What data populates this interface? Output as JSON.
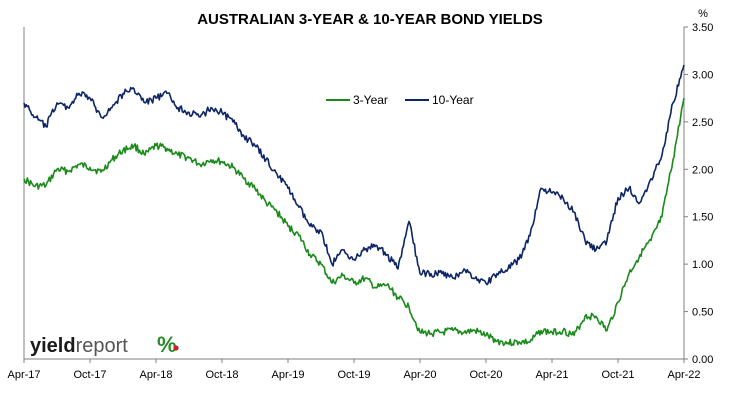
{
  "chart_data": {
    "type": "line",
    "title": "AUSTRALIAN 3-YEAR & 10-YEAR BOND YIELDS",
    "xlabel": "",
    "ylabel": "%",
    "x_tick_labels": [
      "Apr-17",
      "Oct-17",
      "Apr-18",
      "Oct-18",
      "Apr-19",
      "Oct-19",
      "Apr-20",
      "Oct-20",
      "Apr-21",
      "Oct-21",
      "Apr-22"
    ],
    "y_tick_labels": [
      "0.00",
      "0.50",
      "1.00",
      "1.50",
      "2.00",
      "2.50",
      "3.00",
      "3.50"
    ],
    "ylim": [
      0,
      3.5
    ],
    "xlim": [
      "2017-04",
      "2022-04"
    ],
    "grid": false,
    "legend_position": "top-center",
    "series": [
      {
        "name": "3-Year",
        "color": "#1a8a1a",
        "x": [
          "2017-04",
          "2017-05",
          "2017-06",
          "2017-07",
          "2017-08",
          "2017-09",
          "2017-10",
          "2017-11",
          "2017-12",
          "2018-01",
          "2018-02",
          "2018-03",
          "2018-04",
          "2018-05",
          "2018-06",
          "2018-07",
          "2018-08",
          "2018-09",
          "2018-10",
          "2018-11",
          "2018-12",
          "2019-01",
          "2019-02",
          "2019-03",
          "2019-04",
          "2019-05",
          "2019-06",
          "2019-07",
          "2019-08",
          "2019-09",
          "2019-10",
          "2019-11",
          "2019-12",
          "2020-01",
          "2020-02",
          "2020-03",
          "2020-04",
          "2020-05",
          "2020-06",
          "2020-07",
          "2020-08",
          "2020-09",
          "2020-10",
          "2020-11",
          "2020-12",
          "2021-01",
          "2021-02",
          "2021-03",
          "2021-04",
          "2021-05",
          "2021-06",
          "2021-07",
          "2021-08",
          "2021-09",
          "2021-10",
          "2021-11",
          "2021-12",
          "2022-01",
          "2022-02",
          "2022-03",
          "2022-04"
        ],
        "values": [
          1.9,
          1.82,
          1.83,
          2.0,
          1.98,
          2.05,
          2.02,
          1.97,
          2.1,
          2.2,
          2.25,
          2.15,
          2.25,
          2.22,
          2.15,
          2.12,
          2.05,
          2.1,
          2.08,
          2.02,
          1.9,
          1.8,
          1.65,
          1.55,
          1.4,
          1.3,
          1.1,
          1.0,
          0.8,
          0.88,
          0.8,
          0.85,
          0.75,
          0.78,
          0.65,
          0.55,
          0.28,
          0.27,
          0.28,
          0.3,
          0.28,
          0.3,
          0.25,
          0.19,
          0.17,
          0.18,
          0.18,
          0.3,
          0.28,
          0.3,
          0.25,
          0.45,
          0.45,
          0.3,
          0.6,
          0.9,
          1.1,
          1.25,
          1.5,
          2.1,
          2.75
        ]
      },
      {
        "name": "10-Year",
        "color": "#0d2566",
        "x": [
          "2017-04",
          "2017-05",
          "2017-06",
          "2017-07",
          "2017-08",
          "2017-09",
          "2017-10",
          "2017-11",
          "2017-12",
          "2018-01",
          "2018-02",
          "2018-03",
          "2018-04",
          "2018-05",
          "2018-06",
          "2018-07",
          "2018-08",
          "2018-09",
          "2018-10",
          "2018-11",
          "2018-12",
          "2019-01",
          "2019-02",
          "2019-03",
          "2019-04",
          "2019-05",
          "2019-06",
          "2019-07",
          "2019-08",
          "2019-09",
          "2019-10",
          "2019-11",
          "2019-12",
          "2020-01",
          "2020-02",
          "2020-03",
          "2020-04",
          "2020-05",
          "2020-06",
          "2020-07",
          "2020-08",
          "2020-09",
          "2020-10",
          "2020-11",
          "2020-12",
          "2021-01",
          "2021-02",
          "2021-03",
          "2021-04",
          "2021-05",
          "2021-06",
          "2021-07",
          "2021-08",
          "2021-09",
          "2021-10",
          "2021-11",
          "2021-12",
          "2022-01",
          "2022-02",
          "2022-03",
          "2022-04"
        ],
        "values": [
          2.7,
          2.55,
          2.45,
          2.7,
          2.65,
          2.8,
          2.75,
          2.55,
          2.65,
          2.8,
          2.85,
          2.7,
          2.75,
          2.8,
          2.65,
          2.6,
          2.55,
          2.65,
          2.6,
          2.5,
          2.35,
          2.25,
          2.1,
          1.95,
          1.8,
          1.6,
          1.4,
          1.35,
          1.0,
          1.15,
          1.05,
          1.15,
          1.2,
          1.1,
          0.95,
          1.45,
          0.9,
          0.9,
          0.9,
          0.85,
          0.95,
          0.85,
          0.8,
          0.9,
          0.95,
          1.05,
          1.3,
          1.8,
          1.75,
          1.7,
          1.55,
          1.25,
          1.15,
          1.25,
          1.7,
          1.8,
          1.65,
          1.9,
          2.15,
          2.7,
          3.1
        ]
      }
    ]
  }
}
